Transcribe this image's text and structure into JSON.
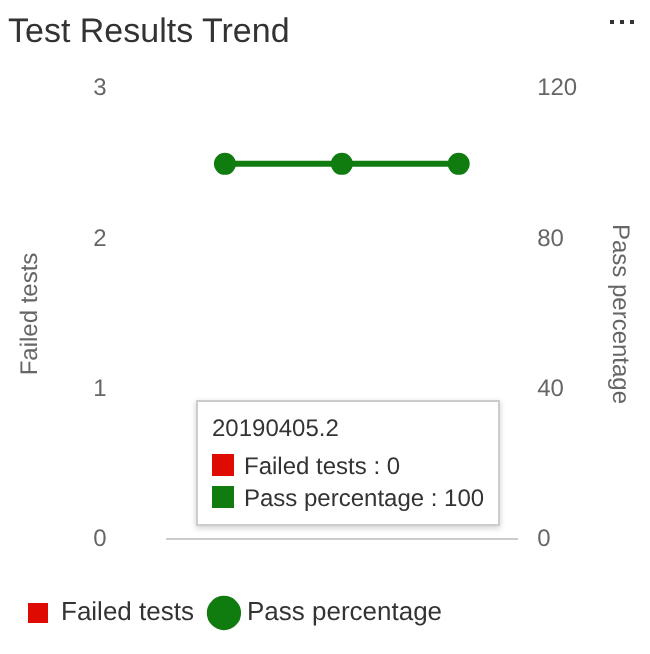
{
  "chart_data": {
    "type": "bar",
    "title": "Test Results Trend",
    "categories": [
      null,
      null,
      null
    ],
    "series": [
      {
        "name": "Failed tests",
        "color": "#e00b00",
        "values": [
          0,
          0,
          0
        ]
      },
      {
        "name": "Pass percentage",
        "type": "line",
        "axis": "y2",
        "color": "#107c10",
        "values": [
          100,
          100,
          100
        ]
      }
    ],
    "ylabel": "Failed tests",
    "y2label": "Pass percentage",
    "ylim": [
      0,
      3
    ],
    "yticks": [
      0,
      1,
      2,
      3
    ],
    "y2lim": [
      0,
      120
    ],
    "y2ticks": [
      0,
      40,
      80,
      120
    ],
    "marker": "circle",
    "legend": "bottom left",
    "annotations": [
      "20190405.2",
      "Failed tests : 0",
      "Pass percentage : 100"
    ]
  }
}
